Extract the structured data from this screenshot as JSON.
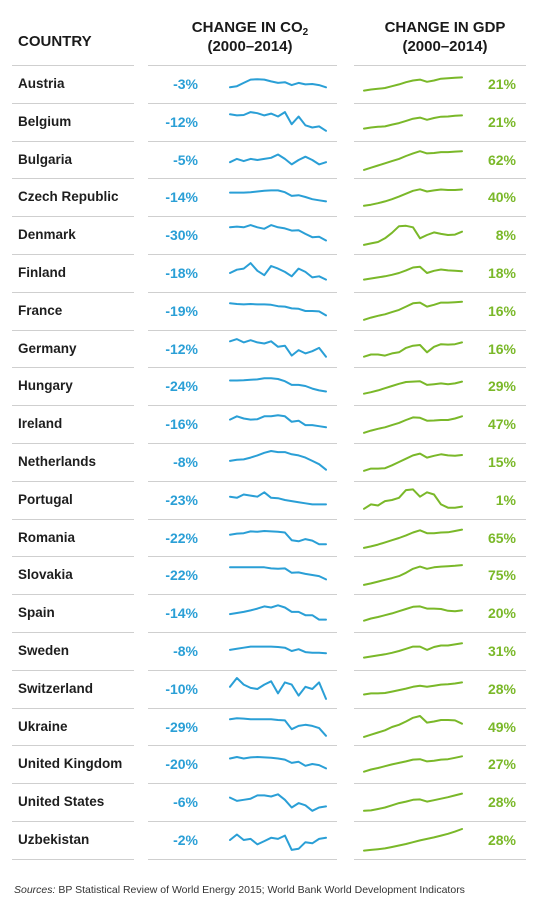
{
  "headers": {
    "country": "COUNTRY",
    "co2_prefix": "CHANGE IN CO",
    "co2_sub": "2",
    "co2_period": "(2000–2014)",
    "gdp_title": "CHANGE IN GDP",
    "gdp_period": "(2000–2014)"
  },
  "colors": {
    "co2": "#2a9fd6",
    "gdp": "#7ab829"
  },
  "source": {
    "label": "Sources:",
    "text": "BP Statistical Review of World Energy 2015; World Bank World Development Indicators"
  },
  "chart_data": {
    "type": "table",
    "columns": [
      "COUNTRY",
      "CHANGE IN CO2 (2000–2014)",
      "CHANGE IN GDP (2000–2014)"
    ],
    "sparkline_note": "values are normalized 0–1 shapes of each trend, 2000–2014",
    "rows": [
      {
        "country": "Austria",
        "co2": "-3%",
        "gdp": "21%",
        "co2_trend": [
          0.35,
          0.4,
          0.55,
          0.7,
          0.72,
          0.7,
          0.62,
          0.55,
          0.58,
          0.45,
          0.55,
          0.48,
          0.5,
          0.45,
          0.35
        ],
        "gdp_trend": [
          0.2,
          0.25,
          0.28,
          0.32,
          0.4,
          0.48,
          0.58,
          0.66,
          0.7,
          0.6,
          0.66,
          0.74,
          0.76,
          0.78,
          0.8
        ]
      },
      {
        "country": "Belgium",
        "co2": "-12%",
        "gdp": "21%",
        "co2_trend": [
          0.85,
          0.8,
          0.82,
          0.95,
          0.9,
          0.8,
          0.88,
          0.75,
          0.95,
          0.4,
          0.75,
          0.35,
          0.25,
          0.3,
          0.1
        ],
        "gdp_trend": [
          0.2,
          0.25,
          0.28,
          0.3,
          0.38,
          0.45,
          0.55,
          0.65,
          0.7,
          0.6,
          0.68,
          0.74,
          0.75,
          0.78,
          0.8
        ]
      },
      {
        "country": "Bulgaria",
        "co2": "-5%",
        "gdp": "62%",
        "co2_trend": [
          0.4,
          0.55,
          0.45,
          0.55,
          0.5,
          0.55,
          0.6,
          0.75,
          0.55,
          0.3,
          0.5,
          0.65,
          0.5,
          0.3,
          0.4
        ],
        "gdp_trend": [
          0.05,
          0.15,
          0.25,
          0.35,
          0.45,
          0.55,
          0.68,
          0.8,
          0.9,
          0.8,
          0.82,
          0.86,
          0.86,
          0.88,
          0.9
        ]
      },
      {
        "country": "Czech Republic",
        "co2": "-14%",
        "gdp": "40%",
        "co2_trend": [
          0.7,
          0.7,
          0.7,
          0.72,
          0.75,
          0.78,
          0.8,
          0.8,
          0.72,
          0.55,
          0.58,
          0.5,
          0.4,
          0.35,
          0.3
        ],
        "gdp_trend": [
          0.1,
          0.15,
          0.22,
          0.3,
          0.4,
          0.52,
          0.65,
          0.78,
          0.85,
          0.75,
          0.8,
          0.84,
          0.82,
          0.82,
          0.84
        ]
      },
      {
        "country": "Denmark",
        "co2": "-30%",
        "gdp": "8%",
        "co2_trend": [
          0.85,
          0.88,
          0.85,
          0.95,
          0.85,
          0.78,
          0.95,
          0.85,
          0.8,
          0.7,
          0.72,
          0.55,
          0.4,
          0.42,
          0.25
        ],
        "gdp_trend": [
          0.05,
          0.12,
          0.18,
          0.35,
          0.6,
          0.9,
          0.92,
          0.85,
          0.35,
          0.5,
          0.62,
          0.55,
          0.5,
          0.52,
          0.65
        ]
      },
      {
        "country": "Finland",
        "co2": "-18%",
        "gdp": "18%",
        "co2_trend": [
          0.5,
          0.65,
          0.7,
          0.95,
          0.6,
          0.4,
          0.82,
          0.7,
          0.55,
          0.35,
          0.7,
          0.55,
          0.3,
          0.35,
          0.2
        ],
        "gdp_trend": [
          0.2,
          0.25,
          0.3,
          0.35,
          0.42,
          0.5,
          0.62,
          0.75,
          0.78,
          0.5,
          0.6,
          0.66,
          0.62,
          0.6,
          0.58
        ]
      },
      {
        "country": "France",
        "co2": "-19%",
        "gdp": "16%",
        "co2_trend": [
          0.85,
          0.82,
          0.8,
          0.82,
          0.8,
          0.8,
          0.78,
          0.72,
          0.7,
          0.62,
          0.6,
          0.5,
          0.5,
          0.48,
          0.3
        ],
        "gdp_trend": [
          0.1,
          0.2,
          0.28,
          0.35,
          0.45,
          0.55,
          0.7,
          0.85,
          0.88,
          0.7,
          0.78,
          0.88,
          0.88,
          0.9,
          0.92
        ]
      },
      {
        "country": "Germany",
        "co2": "-12%",
        "gdp": "16%",
        "co2_trend": [
          0.85,
          0.95,
          0.8,
          0.9,
          0.8,
          0.75,
          0.85,
          0.6,
          0.65,
          0.2,
          0.45,
          0.3,
          0.4,
          0.55,
          0.15
        ],
        "gdp_trend": [
          0.15,
          0.25,
          0.25,
          0.2,
          0.3,
          0.35,
          0.55,
          0.65,
          0.68,
          0.35,
          0.6,
          0.72,
          0.7,
          0.72,
          0.8
        ]
      },
      {
        "country": "Hungary",
        "co2": "-24%",
        "gdp": "29%",
        "co2_trend": [
          0.75,
          0.75,
          0.76,
          0.78,
          0.8,
          0.85,
          0.85,
          0.82,
          0.72,
          0.55,
          0.55,
          0.5,
          0.38,
          0.3,
          0.25
        ],
        "gdp_trend": [
          0.15,
          0.22,
          0.3,
          0.4,
          0.5,
          0.6,
          0.68,
          0.7,
          0.72,
          0.55,
          0.58,
          0.62,
          0.58,
          0.62,
          0.7
        ]
      },
      {
        "country": "Ireland",
        "co2": "-16%",
        "gdp": "47%",
        "co2_trend": [
          0.7,
          0.85,
          0.75,
          0.7,
          0.72,
          0.85,
          0.85,
          0.9,
          0.85,
          0.6,
          0.65,
          0.45,
          0.45,
          0.4,
          0.35
        ],
        "gdp_trend": [
          0.1,
          0.2,
          0.28,
          0.35,
          0.45,
          0.55,
          0.68,
          0.8,
          0.78,
          0.65,
          0.66,
          0.68,
          0.68,
          0.75,
          0.85
        ]
      },
      {
        "country": "Netherlands",
        "co2": "-8%",
        "gdp": "15%",
        "co2_trend": [
          0.55,
          0.6,
          0.62,
          0.7,
          0.8,
          0.92,
          1.0,
          0.95,
          0.95,
          0.85,
          0.8,
          0.7,
          0.55,
          0.4,
          0.15
        ],
        "gdp_trend": [
          0.1,
          0.2,
          0.2,
          0.22,
          0.35,
          0.5,
          0.65,
          0.8,
          0.88,
          0.7,
          0.78,
          0.85,
          0.8,
          0.78,
          0.82
        ]
      },
      {
        "country": "Portugal",
        "co2": "-23%",
        "gdp": "1%",
        "co2_trend": [
          0.65,
          0.6,
          0.75,
          0.7,
          0.65,
          0.85,
          0.6,
          0.58,
          0.5,
          0.45,
          0.4,
          0.35,
          0.3,
          0.3,
          0.3
        ],
        "gdp_trend": [
          0.1,
          0.3,
          0.25,
          0.45,
          0.5,
          0.6,
          0.95,
          0.98,
          0.65,
          0.85,
          0.75,
          0.3,
          0.15,
          0.15,
          0.2
        ]
      },
      {
        "country": "Romania",
        "co2": "-22%",
        "gdp": "65%",
        "co2_trend": [
          0.65,
          0.7,
          0.72,
          0.8,
          0.78,
          0.82,
          0.8,
          0.78,
          0.75,
          0.4,
          0.35,
          0.45,
          0.38,
          0.22,
          0.22
        ],
        "gdp_trend": [
          0.05,
          0.12,
          0.2,
          0.3,
          0.4,
          0.5,
          0.62,
          0.75,
          0.85,
          0.72,
          0.72,
          0.75,
          0.76,
          0.82,
          0.88
        ]
      },
      {
        "country": "Slovakia",
        "co2": "-22%",
        "gdp": "75%",
        "co2_trend": [
          0.85,
          0.85,
          0.85,
          0.85,
          0.85,
          0.85,
          0.8,
          0.78,
          0.8,
          0.6,
          0.62,
          0.55,
          0.5,
          0.45,
          0.3
        ],
        "gdp_trend": [
          0.05,
          0.12,
          0.2,
          0.28,
          0.36,
          0.45,
          0.6,
          0.78,
          0.88,
          0.78,
          0.85,
          0.88,
          0.9,
          0.92,
          0.95
        ]
      },
      {
        "country": "Spain",
        "co2": "-14%",
        "gdp": "20%",
        "co2_trend": [
          0.45,
          0.5,
          0.55,
          0.62,
          0.7,
          0.8,
          0.75,
          0.85,
          0.75,
          0.55,
          0.55,
          0.4,
          0.4,
          0.2,
          0.2
        ],
        "gdp_trend": [
          0.15,
          0.25,
          0.32,
          0.4,
          0.48,
          0.58,
          0.68,
          0.78,
          0.8,
          0.7,
          0.7,
          0.68,
          0.6,
          0.58,
          0.62
        ]
      },
      {
        "country": "Sweden",
        "co2": "-8%",
        "gdp": "31%",
        "co2_trend": [
          0.55,
          0.6,
          0.65,
          0.7,
          0.7,
          0.7,
          0.7,
          0.68,
          0.65,
          0.5,
          0.58,
          0.45,
          0.42,
          0.42,
          0.4
        ],
        "gdp_trend": [
          0.2,
          0.25,
          0.3,
          0.35,
          0.42,
          0.5,
          0.6,
          0.7,
          0.7,
          0.55,
          0.68,
          0.75,
          0.75,
          0.8,
          0.85
        ]
      },
      {
        "country": "Switzerland",
        "co2": "-10%",
        "gdp": "28%",
        "co2_trend": [
          0.6,
          1.0,
          0.7,
          0.55,
          0.5,
          0.7,
          0.85,
          0.3,
          0.8,
          0.7,
          0.2,
          0.6,
          0.5,
          0.8,
          0.05
        ],
        "gdp_trend": [
          0.25,
          0.3,
          0.3,
          0.32,
          0.38,
          0.45,
          0.52,
          0.6,
          0.65,
          0.6,
          0.65,
          0.7,
          0.72,
          0.75,
          0.8
        ]
      },
      {
        "country": "Ukraine",
        "co2": "-29%",
        "gdp": "49%",
        "co2_trend": [
          0.85,
          0.9,
          0.88,
          0.85,
          0.85,
          0.85,
          0.85,
          0.82,
          0.8,
          0.4,
          0.55,
          0.6,
          0.55,
          0.45,
          0.1
        ],
        "gdp_trend": [
          0.05,
          0.15,
          0.25,
          0.35,
          0.5,
          0.6,
          0.75,
          0.92,
          1.0,
          0.7,
          0.75,
          0.82,
          0.82,
          0.8,
          0.65
        ]
      },
      {
        "country": "United Kingdom",
        "co2": "-20%",
        "gdp": "27%",
        "co2_trend": [
          0.75,
          0.82,
          0.75,
          0.8,
          0.82,
          0.8,
          0.78,
          0.75,
          0.7,
          0.55,
          0.6,
          0.42,
          0.5,
          0.45,
          0.3
        ],
        "gdp_trend": [
          0.15,
          0.25,
          0.32,
          0.4,
          0.48,
          0.55,
          0.62,
          0.7,
          0.72,
          0.62,
          0.65,
          0.7,
          0.72,
          0.78,
          0.85
        ]
      },
      {
        "country": "United States",
        "co2": "-6%",
        "gdp": "28%",
        "co2_trend": [
          0.7,
          0.55,
          0.6,
          0.65,
          0.8,
          0.8,
          0.75,
          0.85,
          0.6,
          0.25,
          0.45,
          0.35,
          0.1,
          0.25,
          0.3
        ],
        "gdp_trend": [
          0.1,
          0.12,
          0.18,
          0.25,
          0.35,
          0.45,
          0.52,
          0.6,
          0.62,
          0.52,
          0.58,
          0.65,
          0.72,
          0.8,
          0.88
        ]
      },
      {
        "country": "Uzbekistan",
        "co2": "-2%",
        "gdp": "28%",
        "co2_trend": [
          0.5,
          0.75,
          0.5,
          0.55,
          0.3,
          0.45,
          0.6,
          0.55,
          0.7,
          0.05,
          0.1,
          0.4,
          0.35,
          0.55,
          0.6
        ],
        "gdp_trend": [
          0.02,
          0.05,
          0.08,
          0.12,
          0.18,
          0.25,
          0.32,
          0.4,
          0.48,
          0.55,
          0.62,
          0.7,
          0.78,
          0.88,
          1.0
        ]
      }
    ]
  }
}
